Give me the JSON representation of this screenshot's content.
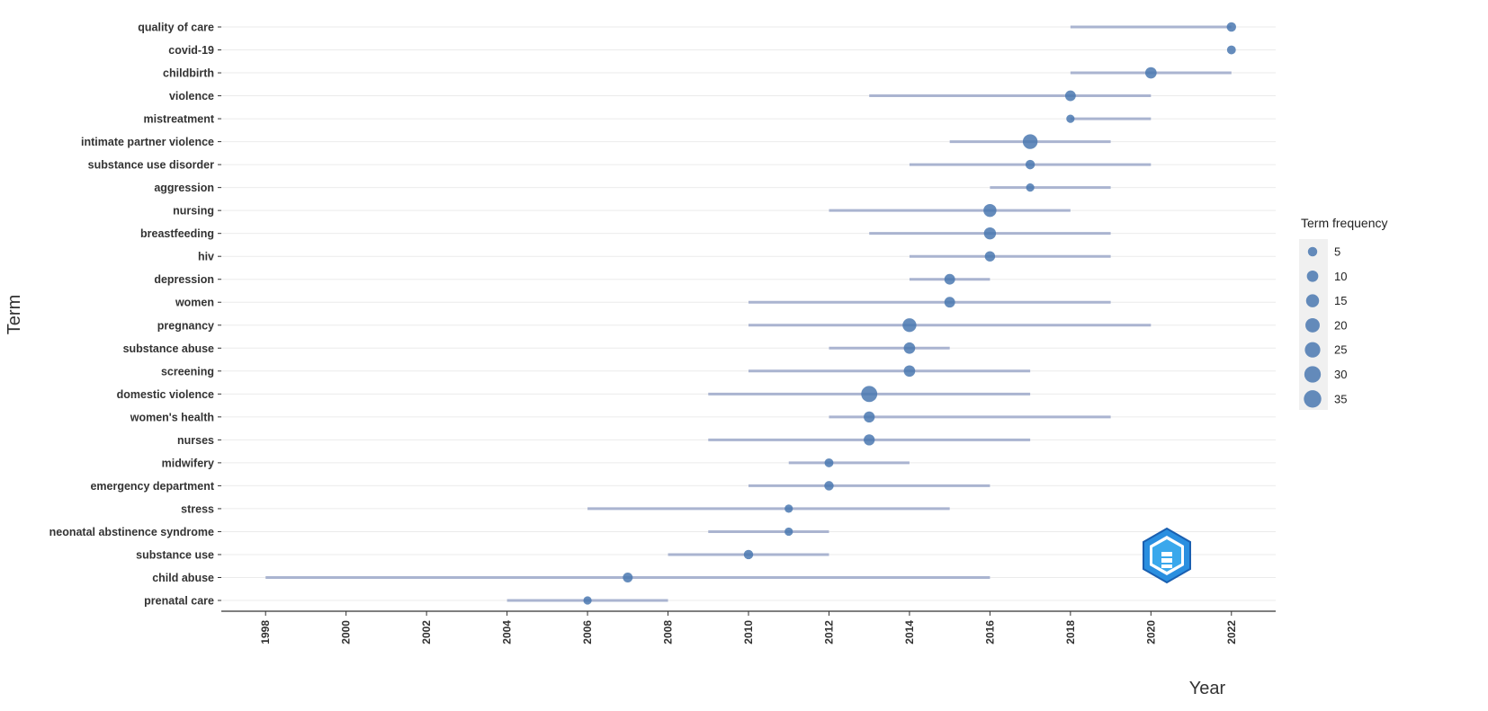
{
  "chart_data": {
    "type": "scatter",
    "xlabel": "Year",
    "ylabel": "Term",
    "xlim": [
      1996.9,
      2023.1
    ],
    "xticks": [
      "1998",
      "2000",
      "2002",
      "2004",
      "2006",
      "2008",
      "2010",
      "2012",
      "2014",
      "2016",
      "2018",
      "2020",
      "2022"
    ],
    "legend": {
      "title": "Term frequency",
      "placement": "right",
      "values": [
        5,
        10,
        15,
        20,
        25,
        30,
        35
      ]
    },
    "grid": true,
    "terms": [
      {
        "term": "quality of care",
        "start": 2018,
        "end": 2022,
        "peak": 2022,
        "freq": 5
      },
      {
        "term": "covid-19",
        "start": 2022,
        "end": 2022,
        "peak": 2022,
        "freq": 4
      },
      {
        "term": "childbirth",
        "start": 2018,
        "end": 2022,
        "peak": 2020,
        "freq": 10
      },
      {
        "term": "violence",
        "start": 2013,
        "end": 2020,
        "peak": 2018,
        "freq": 8
      },
      {
        "term": "mistreatment",
        "start": 2018,
        "end": 2020,
        "peak": 2018,
        "freq": 3
      },
      {
        "term": "intimate partner violence",
        "start": 2015,
        "end": 2019,
        "peak": 2017,
        "freq": 22
      },
      {
        "term": "substance use disorder",
        "start": 2014,
        "end": 2020,
        "peak": 2017,
        "freq": 5
      },
      {
        "term": "aggression",
        "start": 2016,
        "end": 2019,
        "peak": 2017,
        "freq": 3
      },
      {
        "term": "nursing",
        "start": 2012,
        "end": 2018,
        "peak": 2016,
        "freq": 15
      },
      {
        "term": "breastfeeding",
        "start": 2013,
        "end": 2019,
        "peak": 2016,
        "freq": 12
      },
      {
        "term": "hiv",
        "start": 2014,
        "end": 2019,
        "peak": 2016,
        "freq": 7
      },
      {
        "term": "depression",
        "start": 2014,
        "end": 2016,
        "peak": 2015,
        "freq": 8
      },
      {
        "term": "women",
        "start": 2010,
        "end": 2019,
        "peak": 2015,
        "freq": 8
      },
      {
        "term": "pregnancy",
        "start": 2010,
        "end": 2020,
        "peak": 2014,
        "freq": 18
      },
      {
        "term": "substance abuse",
        "start": 2012,
        "end": 2015,
        "peak": 2014,
        "freq": 10
      },
      {
        "term": "screening",
        "start": 2010,
        "end": 2017,
        "peak": 2014,
        "freq": 10
      },
      {
        "term": "domestic violence",
        "start": 2009,
        "end": 2017,
        "peak": 2013,
        "freq": 28
      },
      {
        "term": "women's health",
        "start": 2012,
        "end": 2019,
        "peak": 2013,
        "freq": 9
      },
      {
        "term": "nurses",
        "start": 2009,
        "end": 2017,
        "peak": 2013,
        "freq": 9
      },
      {
        "term": "midwifery",
        "start": 2011,
        "end": 2014,
        "peak": 2012,
        "freq": 4
      },
      {
        "term": "emergency department",
        "start": 2010,
        "end": 2016,
        "peak": 2012,
        "freq": 5
      },
      {
        "term": "stress",
        "start": 2006,
        "end": 2015,
        "peak": 2011,
        "freq": 3
      },
      {
        "term": "neonatal abstinence syndrome",
        "start": 2009,
        "end": 2012,
        "peak": 2011,
        "freq": 3
      },
      {
        "term": "substance use",
        "start": 2008,
        "end": 2012,
        "peak": 2010,
        "freq": 5
      },
      {
        "term": "child abuse",
        "start": 1998,
        "end": 2016,
        "peak": 2007,
        "freq": 6
      },
      {
        "term": "prenatal care",
        "start": 2004,
        "end": 2008,
        "peak": 2006,
        "freq": 3
      }
    ],
    "colors": {
      "point": "#4a78b0",
      "range_line": "#aab4d0",
      "grid": "#ebebeb",
      "axis": "#333333",
      "legend_bg": "#f0f0f0"
    }
  },
  "watermark": {
    "icon": "bibliometrix-logo-icon"
  }
}
